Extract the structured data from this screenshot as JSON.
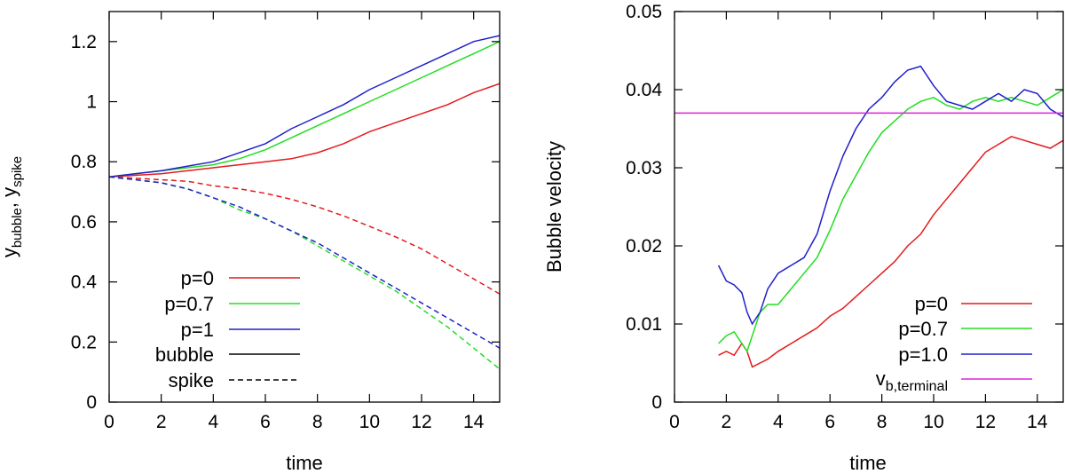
{
  "chart_data": [
    {
      "type": "line",
      "title": "",
      "xlabel": "time",
      "ylabel_main": "y",
      "ylabel_sub1": "bubble",
      "ylabel_sep": ", y",
      "ylabel_sub2": "spike",
      "xlim": [
        0,
        15
      ],
      "ylim": [
        0,
        1.3
      ],
      "xticks": [
        0,
        2,
        4,
        6,
        8,
        10,
        12,
        14
      ],
      "xtick_labels": [
        "0",
        "2",
        "4",
        "6",
        "8",
        "10",
        "12",
        "14"
      ],
      "yticks": [
        0,
        0.2,
        0.4,
        0.6,
        0.8,
        1,
        1.2
      ],
      "ytick_labels": [
        "0",
        "0.2",
        "0.4",
        "0.6",
        "0.8",
        "1",
        "1.2"
      ],
      "grid": false,
      "legend_position": "bottom-left",
      "legend": [
        {
          "label": "p=0",
          "color": "#e41a1c",
          "style": "solid"
        },
        {
          "label": "p=0.7",
          "color": "#22dd22",
          "style": "solid"
        },
        {
          "label": "p=1",
          "color": "#1f1fcc",
          "style": "solid"
        },
        {
          "label": "bubble",
          "color": "#000000",
          "style": "solid"
        },
        {
          "label": "spike",
          "color": "#000000",
          "style": "dashed"
        }
      ],
      "series": [
        {
          "name": "p=0 bubble",
          "color": "#e41a1c",
          "style": "solid",
          "x": [
            0,
            1,
            2,
            3,
            4,
            5,
            6,
            7,
            8,
            9,
            10,
            11,
            12,
            13,
            14,
            15
          ],
          "y": [
            0.75,
            0.755,
            0.76,
            0.77,
            0.78,
            0.79,
            0.8,
            0.81,
            0.83,
            0.86,
            0.9,
            0.93,
            0.96,
            0.99,
            1.03,
            1.06
          ]
        },
        {
          "name": "p=0.7 bubble",
          "color": "#22dd22",
          "style": "solid",
          "x": [
            0,
            1,
            2,
            3,
            4,
            5,
            6,
            7,
            8,
            9,
            10,
            11,
            12,
            13,
            14,
            15
          ],
          "y": [
            0.75,
            0.76,
            0.77,
            0.78,
            0.79,
            0.81,
            0.84,
            0.88,
            0.92,
            0.96,
            1.0,
            1.04,
            1.08,
            1.12,
            1.16,
            1.2
          ]
        },
        {
          "name": "p=1 bubble",
          "color": "#1f1fcc",
          "style": "solid",
          "x": [
            0,
            1,
            2,
            3,
            4,
            5,
            6,
            7,
            8,
            9,
            10,
            11,
            12,
            13,
            14,
            15
          ],
          "y": [
            0.75,
            0.76,
            0.77,
            0.785,
            0.8,
            0.83,
            0.86,
            0.91,
            0.95,
            0.99,
            1.04,
            1.08,
            1.12,
            1.16,
            1.2,
            1.22
          ]
        },
        {
          "name": "p=0 spike",
          "color": "#e41a1c",
          "style": "dashed",
          "x": [
            0,
            1,
            2,
            3,
            4,
            5,
            6,
            7,
            8,
            9,
            10,
            11,
            12,
            13,
            14,
            15
          ],
          "y": [
            0.75,
            0.745,
            0.74,
            0.735,
            0.72,
            0.71,
            0.695,
            0.675,
            0.65,
            0.62,
            0.585,
            0.55,
            0.51,
            0.46,
            0.41,
            0.36
          ]
        },
        {
          "name": "p=0.7 spike",
          "color": "#22dd22",
          "style": "dashed",
          "x": [
            0,
            1,
            2,
            3,
            4,
            5,
            6,
            7,
            8,
            9,
            10,
            11,
            12,
            13,
            14,
            15
          ],
          "y": [
            0.75,
            0.74,
            0.73,
            0.71,
            0.68,
            0.64,
            0.61,
            0.57,
            0.52,
            0.47,
            0.42,
            0.37,
            0.31,
            0.25,
            0.18,
            0.11
          ]
        },
        {
          "name": "p=1 spike",
          "color": "#1f1fcc",
          "style": "dashed",
          "x": [
            0,
            1,
            2,
            3,
            4,
            5,
            6,
            7,
            8,
            9,
            10,
            11,
            12,
            13,
            14,
            15
          ],
          "y": [
            0.75,
            0.74,
            0.73,
            0.71,
            0.68,
            0.65,
            0.61,
            0.57,
            0.53,
            0.48,
            0.43,
            0.38,
            0.33,
            0.28,
            0.23,
            0.18
          ]
        }
      ]
    },
    {
      "type": "line",
      "title": "",
      "xlabel": "time",
      "ylabel": "Bubble velocity",
      "xlim": [
        0,
        15
      ],
      "ylim": [
        0,
        0.05
      ],
      "xticks": [
        0,
        2,
        4,
        6,
        8,
        10,
        12,
        14
      ],
      "xtick_labels": [
        "0",
        "2",
        "4",
        "6",
        "8",
        "10",
        "12",
        "14"
      ],
      "yticks": [
        0,
        0.01,
        0.02,
        0.03,
        0.04,
        0.05
      ],
      "ytick_labels": [
        "0",
        "0.01",
        "0.02",
        "0.03",
        "0.04",
        "0.05"
      ],
      "grid": false,
      "legend_position": "bottom-right",
      "legend": [
        {
          "label": "p=0",
          "color": "#e41a1c",
          "style": "solid"
        },
        {
          "label": "p=0.7",
          "color": "#22dd22",
          "style": "solid"
        },
        {
          "label": "p=1.0",
          "color": "#1f1fcc",
          "style": "solid"
        },
        {
          "label_main": "v",
          "label_sub": "b,terminal",
          "color": "#dd22dd",
          "style": "solid"
        }
      ],
      "series": [
        {
          "name": "p=0",
          "color": "#e41a1c",
          "style": "solid",
          "x": [
            1.7,
            2.0,
            2.3,
            2.6,
            2.8,
            3.0,
            3.3,
            3.6,
            4.0,
            4.5,
            5.0,
            5.5,
            6.0,
            6.5,
            7.0,
            7.5,
            8.0,
            8.5,
            9.0,
            9.5,
            10.0,
            10.5,
            11.0,
            11.5,
            12.0,
            12.5,
            13.0,
            13.5,
            14.0,
            14.5,
            15.0
          ],
          "y": [
            0.006,
            0.0065,
            0.006,
            0.0075,
            0.0065,
            0.0045,
            0.005,
            0.0055,
            0.0065,
            0.0075,
            0.0085,
            0.0095,
            0.011,
            0.012,
            0.0135,
            0.015,
            0.0165,
            0.018,
            0.02,
            0.0215,
            0.024,
            0.026,
            0.028,
            0.03,
            0.032,
            0.033,
            0.034,
            0.0335,
            0.033,
            0.0325,
            0.0335
          ]
        },
        {
          "name": "p=0.7",
          "color": "#22dd22",
          "style": "solid",
          "x": [
            1.7,
            2.0,
            2.3,
            2.6,
            2.8,
            3.0,
            3.3,
            3.6,
            4.0,
            4.5,
            5.0,
            5.5,
            6.0,
            6.5,
            7.0,
            7.5,
            8.0,
            8.5,
            9.0,
            9.5,
            10.0,
            10.5,
            11.0,
            11.5,
            12.0,
            12.5,
            13.0,
            13.5,
            14.0,
            14.5,
            15.0
          ],
          "y": [
            0.0075,
            0.0085,
            0.009,
            0.0075,
            0.0065,
            0.0085,
            0.0115,
            0.0125,
            0.0125,
            0.0145,
            0.0165,
            0.0185,
            0.022,
            0.026,
            0.029,
            0.032,
            0.0345,
            0.036,
            0.0375,
            0.0385,
            0.039,
            0.038,
            0.0375,
            0.0385,
            0.039,
            0.0385,
            0.039,
            0.0385,
            0.038,
            0.039,
            0.04
          ]
        },
        {
          "name": "p=1.0",
          "color": "#1f1fcc",
          "style": "solid",
          "x": [
            1.7,
            2.0,
            2.3,
            2.6,
            2.8,
            3.0,
            3.3,
            3.6,
            4.0,
            4.5,
            5.0,
            5.5,
            6.0,
            6.5,
            7.0,
            7.5,
            8.0,
            8.5,
            9.0,
            9.5,
            10.0,
            10.5,
            11.0,
            11.5,
            12.0,
            12.5,
            13.0,
            13.5,
            14.0,
            14.5,
            15.0
          ],
          "y": [
            0.0175,
            0.0155,
            0.015,
            0.014,
            0.0115,
            0.01,
            0.0115,
            0.0145,
            0.0165,
            0.0175,
            0.0185,
            0.0215,
            0.027,
            0.0315,
            0.035,
            0.0375,
            0.039,
            0.041,
            0.0425,
            0.043,
            0.0405,
            0.0385,
            0.038,
            0.0375,
            0.0385,
            0.0395,
            0.0385,
            0.04,
            0.0395,
            0.0375,
            0.0365
          ]
        },
        {
          "name": "v_b,terminal",
          "color": "#dd22dd",
          "style": "solid",
          "x": [
            0,
            15
          ],
          "y": [
            0.037,
            0.037
          ]
        }
      ]
    }
  ]
}
